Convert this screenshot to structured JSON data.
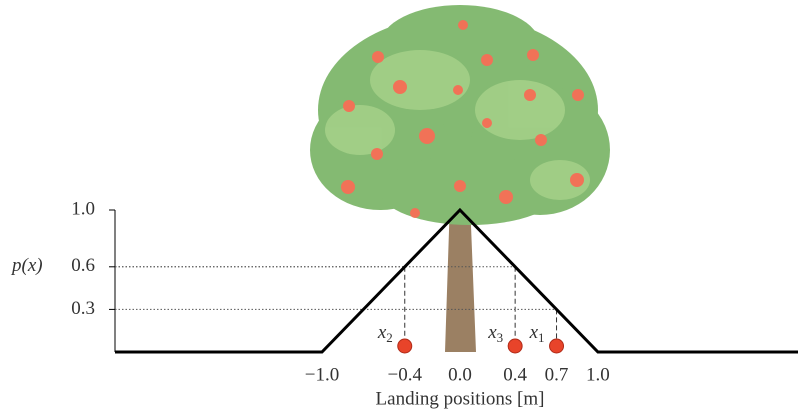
{
  "chart_data": {
    "type": "line",
    "xlabel": "Landing positions [m]",
    "ylabel": "p(x)",
    "x": [
      -2.5,
      -1.0,
      0.0,
      1.0,
      2.45
    ],
    "series": [
      {
        "color": "#000000",
        "values": [
          0,
          0,
          1,
          0,
          0
        ]
      }
    ],
    "points": [
      {
        "label": "x",
        "sub": "2",
        "x": -0.4,
        "y": 0.6
      },
      {
        "label": "x",
        "sub": "3",
        "x": 0.4,
        "y": 0.6
      },
      {
        "label": "x",
        "sub": "1",
        "x": 0.7,
        "y": 0.3
      }
    ],
    "xlim": [
      -2.5,
      2.45
    ],
    "ylim": [
      0,
      1.0
    ],
    "xticks": [
      {
        "value": -1.0,
        "label": "−1.0"
      },
      {
        "value": -0.4,
        "label": "−0.4"
      },
      {
        "value": 0.0,
        "label": "0.0"
      },
      {
        "value": 0.4,
        "label": "0.4"
      },
      {
        "value": 0.7,
        "label": "0.7"
      },
      {
        "value": 1.0,
        "label": "1.0"
      }
    ],
    "yticks": [
      0.3,
      0.6,
      {
        "value": 1.0,
        "label": "1.0"
      }
    ]
  }
}
